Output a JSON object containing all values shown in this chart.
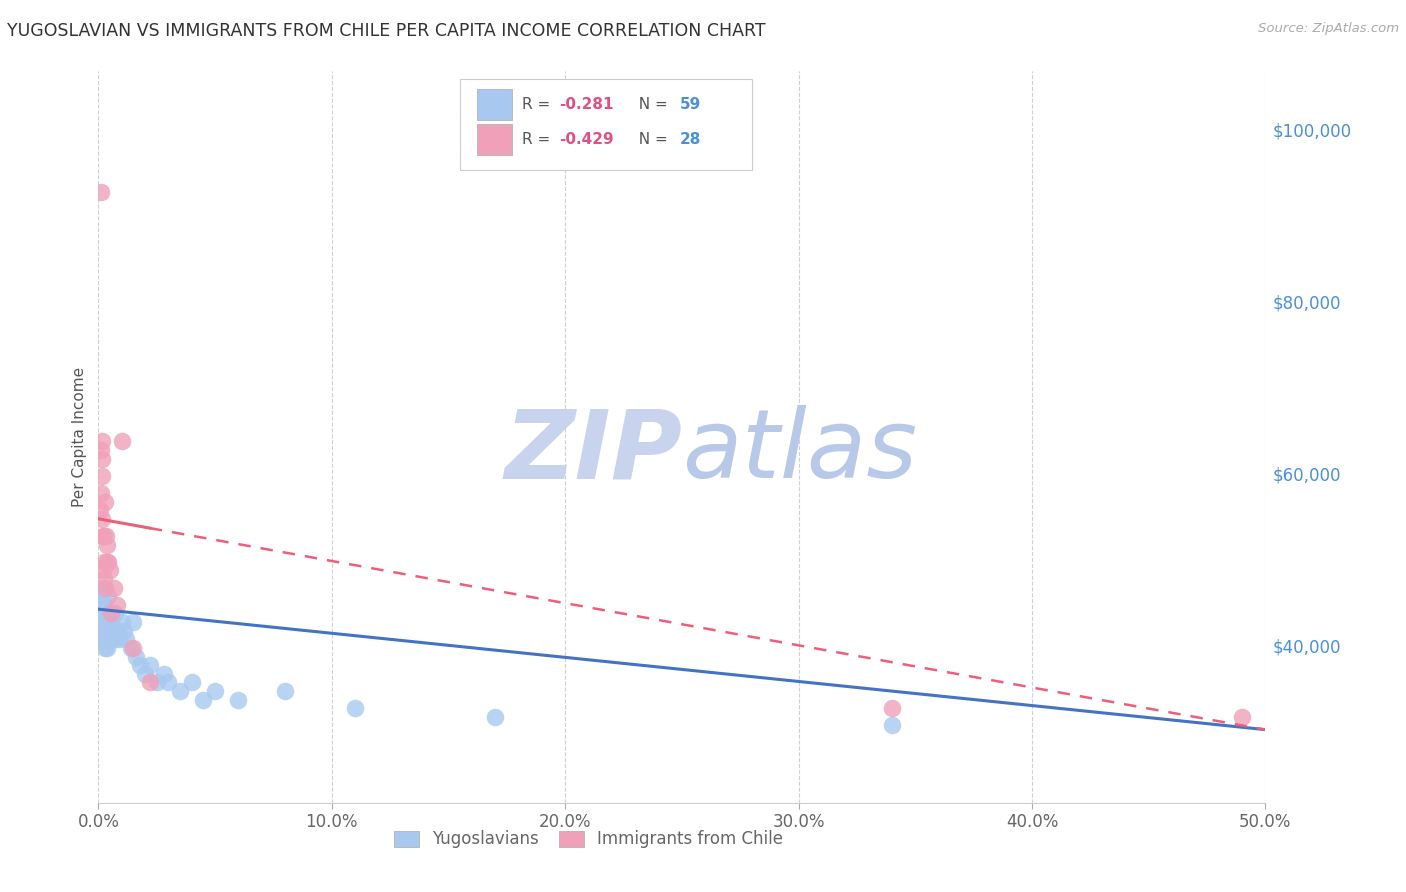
{
  "title": "YUGOSLAVIAN VS IMMIGRANTS FROM CHILE PER CAPITA INCOME CORRELATION CHART",
  "source": "Source: ZipAtlas.com",
  "ylabel": "Per Capita Income",
  "xlabel_ticks": [
    "0.0%",
    "10.0%",
    "20.0%",
    "30.0%",
    "40.0%",
    "50.0%"
  ],
  "xlabel_vals": [
    0.0,
    10.0,
    20.0,
    30.0,
    40.0,
    50.0
  ],
  "ytick_labels": [
    "$100,000",
    "$80,000",
    "$60,000",
    "$40,000"
  ],
  "ytick_vals": [
    100000,
    80000,
    60000,
    40000
  ],
  "blue_color": "#A8C8F0",
  "pink_color": "#F0A0B8",
  "blue_line_color": "#4472C4",
  "pink_line_color": "#E8607A",
  "watermark_zip_color": "#C8D4EE",
  "watermark_atlas_color": "#B8C8E8",
  "yugoslavians_x": [
    0.07,
    0.09,
    0.1,
    0.11,
    0.12,
    0.13,
    0.14,
    0.15,
    0.16,
    0.17,
    0.18,
    0.19,
    0.2,
    0.21,
    0.22,
    0.23,
    0.24,
    0.25,
    0.26,
    0.27,
    0.28,
    0.29,
    0.3,
    0.32,
    0.34,
    0.36,
    0.38,
    0.4,
    0.42,
    0.45,
    0.48,
    0.5,
    0.55,
    0.6,
    0.65,
    0.7,
    0.8,
    0.9,
    1.0,
    1.1,
    1.2,
    1.4,
    1.5,
    1.6,
    1.8,
    2.0,
    2.2,
    2.5,
    2.8,
    3.0,
    3.5,
    4.0,
    4.5,
    5.0,
    6.0,
    8.0,
    11.0,
    17.0,
    34.0
  ],
  "yugoslavians_y": [
    46000,
    44000,
    43000,
    47000,
    42000,
    44000,
    46000,
    45000,
    43000,
    42000,
    44000,
    41000,
    43000,
    42000,
    44000,
    43000,
    41000,
    45000,
    42000,
    41000,
    43000,
    40000,
    42000,
    44000,
    43000,
    41000,
    40000,
    46000,
    44000,
    43000,
    42000,
    41000,
    43000,
    42000,
    41000,
    44000,
    42000,
    41000,
    43000,
    42000,
    41000,
    40000,
    43000,
    39000,
    38000,
    37000,
    38000,
    36000,
    37000,
    36000,
    35000,
    36000,
    34000,
    35000,
    34000,
    35000,
    33000,
    32000,
    31000
  ],
  "chile_x": [
    0.08,
    0.1,
    0.12,
    0.13,
    0.14,
    0.15,
    0.16,
    0.17,
    0.18,
    0.2,
    0.22,
    0.24,
    0.26,
    0.28,
    0.3,
    0.32,
    0.35,
    0.38,
    0.42,
    0.48,
    0.55,
    0.65,
    0.8,
    1.0,
    1.5,
    2.2,
    34.0,
    49.0
  ],
  "chile_y": [
    56000,
    58000,
    93000,
    63000,
    62000,
    60000,
    64000,
    55000,
    53000,
    49000,
    53000,
    48000,
    50000,
    47000,
    57000,
    53000,
    52000,
    50000,
    50000,
    49000,
    44000,
    47000,
    45000,
    64000,
    40000,
    36000,
    33000,
    32000
  ],
  "xmin": 0.0,
  "xmax": 50.0,
  "ymin": 22000,
  "ymax": 107000,
  "background_color": "#FFFFFF",
  "grid_color": "#D0D0D0",
  "blue_intercept": 44500,
  "blue_slope": -280,
  "pink_intercept": 55000,
  "pink_slope": -490
}
